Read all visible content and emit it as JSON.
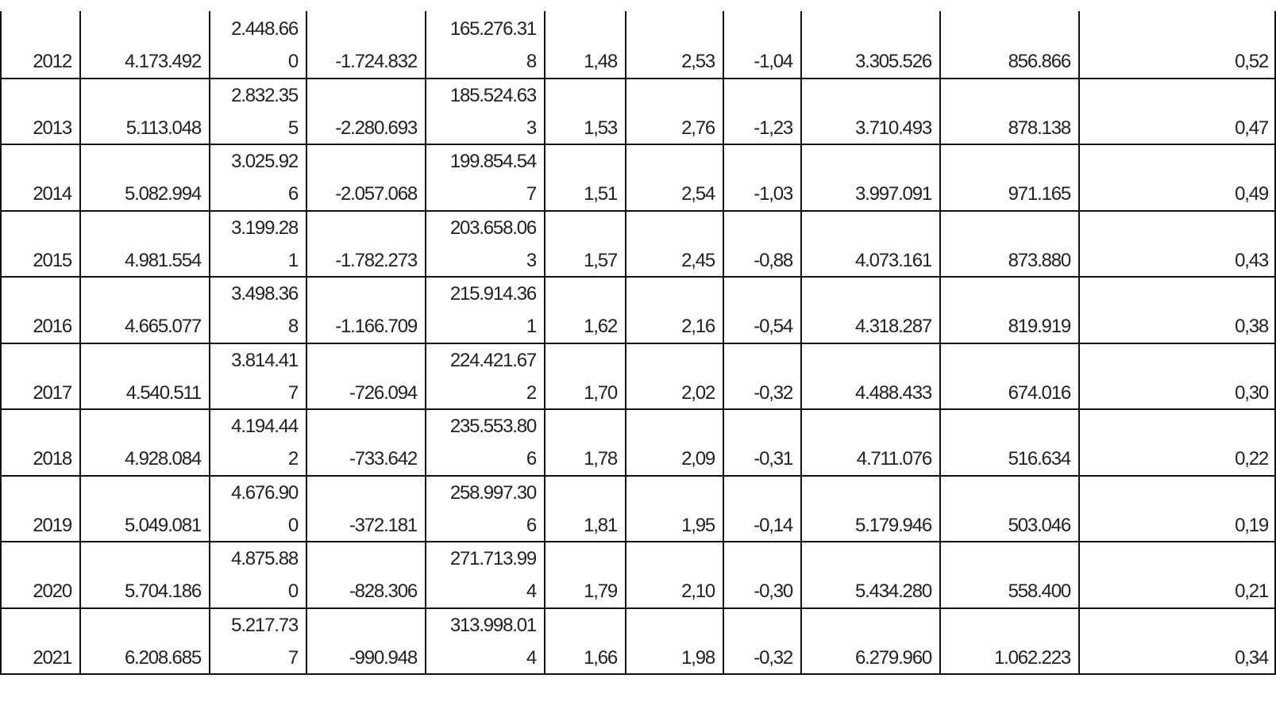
{
  "table": {
    "rows": [
      [
        "2012",
        "4.173.492",
        [
          "2.448.66",
          "0"
        ],
        "-1.724.832",
        [
          "165.276.31",
          "8"
        ],
        "1,48",
        "2,53",
        "-1,04",
        "3.305.526",
        "856.866",
        "0,52"
      ],
      [
        "2013",
        "5.113.048",
        [
          "2.832.35",
          "5"
        ],
        "-2.280.693",
        [
          "185.524.63",
          "3"
        ],
        "1,53",
        "2,76",
        "-1,23",
        "3.710.493",
        "878.138",
        "0,47"
      ],
      [
        "2014",
        "5.082.994",
        [
          "3.025.92",
          "6"
        ],
        "-2.057.068",
        [
          "199.854.54",
          "7"
        ],
        "1,51",
        "2,54",
        "-1,03",
        "3.997.091",
        "971.165",
        "0,49"
      ],
      [
        "2015",
        "4.981.554",
        [
          "3.199.28",
          "1"
        ],
        "-1.782.273",
        [
          "203.658.06",
          "3"
        ],
        "1,57",
        "2,45",
        "-0,88",
        "4.073.161",
        "873.880",
        "0,43"
      ],
      [
        "2016",
        "4.665.077",
        [
          "3.498.36",
          "8"
        ],
        "-1.166.709",
        [
          "215.914.36",
          "1"
        ],
        "1,62",
        "2,16",
        "-0,54",
        "4.318.287",
        "819.919",
        "0,38"
      ],
      [
        "2017",
        "4.540.511",
        [
          "3.814.41",
          "7"
        ],
        "-726.094",
        [
          "224.421.67",
          "2"
        ],
        "1,70",
        "2,02",
        "-0,32",
        "4.488.433",
        "674.016",
        "0,30"
      ],
      [
        "2018",
        "4.928.084",
        [
          "4.194.44",
          "2"
        ],
        "-733.642",
        [
          "235.553.80",
          "6"
        ],
        "1,78",
        "2,09",
        "-0,31",
        "4.711.076",
        "516.634",
        "0,22"
      ],
      [
        "2019",
        "5.049.081",
        [
          "4.676.90",
          "0"
        ],
        "-372.181",
        [
          "258.997.30",
          "6"
        ],
        "1,81",
        "1,95",
        "-0,14",
        "5.179.946",
        "503.046",
        "0,19"
      ],
      [
        "2020",
        "5.704.186",
        [
          "4.875.88",
          "0"
        ],
        "-828.306",
        [
          "271.713.99",
          "4"
        ],
        "1,79",
        "2,10",
        "-0,30",
        "5.434.280",
        "558.400",
        "0,21"
      ],
      [
        "2021",
        "6.208.685",
        [
          "5.217.73",
          "7"
        ],
        "-990.948",
        [
          "313.998.01",
          "4"
        ],
        "1,66",
        "1,98",
        "-0,32",
        "6.279.960",
        "1.062.223",
        "0,34"
      ]
    ]
  }
}
